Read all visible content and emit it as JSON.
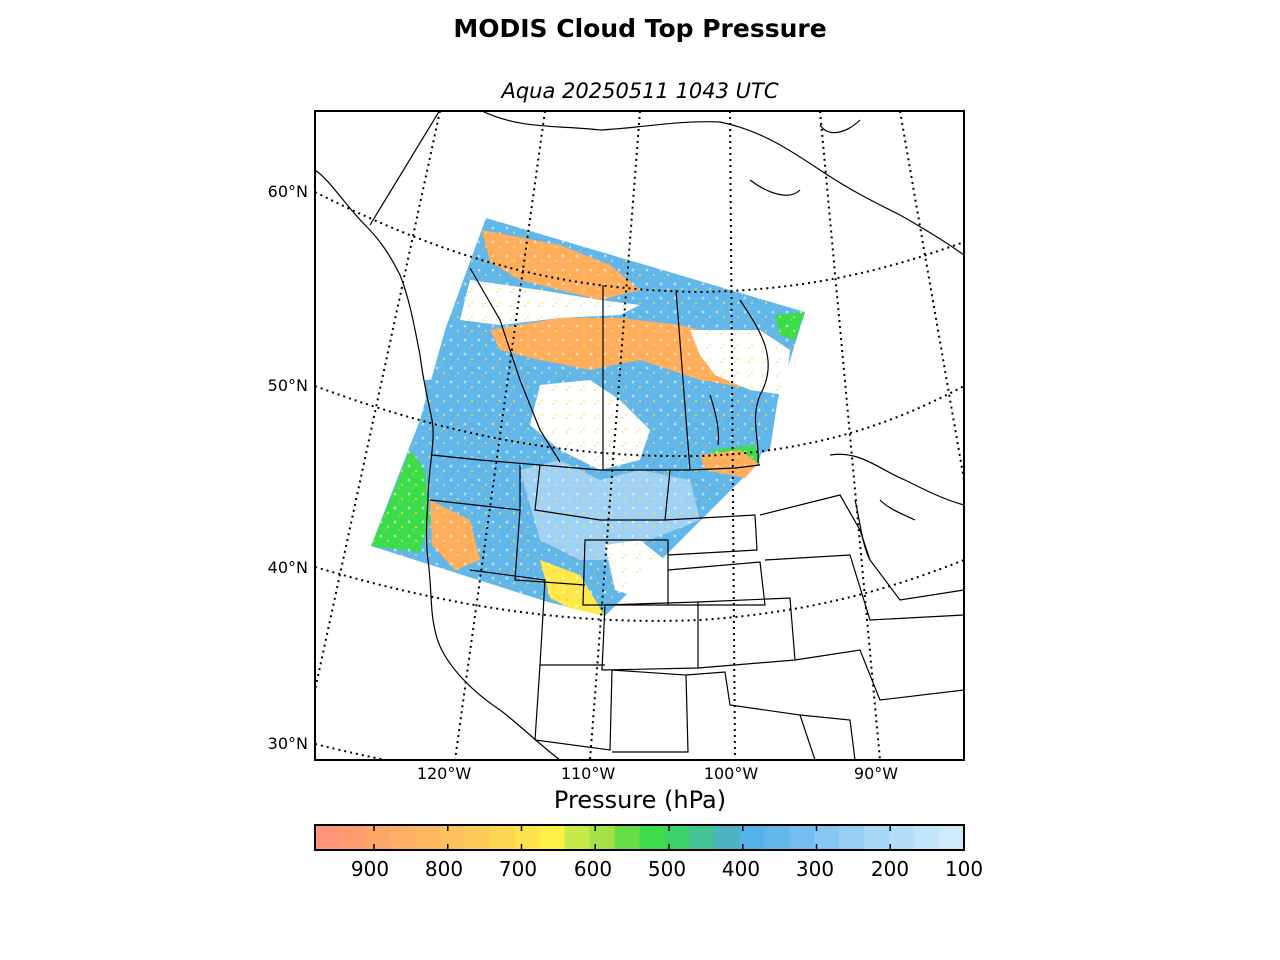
{
  "title": "MODIS Cloud Top Pressure",
  "subtitle": "Aqua 20250511 1043 UTC",
  "map": {
    "projection": "conic",
    "lat_labels": [
      "60°N",
      "50°N",
      "40°N",
      "30°N"
    ],
    "lon_labels": [
      "120°W",
      "110°W",
      "100°W",
      "90°W"
    ],
    "graticule_style": "dotted",
    "swath_colors": {
      "low": "#ffae5e",
      "mid_low": "#ffe94a",
      "mid": "#3ddc4a",
      "high": "#62b7ea",
      "very_high": "#9fd2f5",
      "clear": "#ffffff"
    }
  },
  "colorbar": {
    "label": "Pressure (hPa)",
    "tick_labels": [
      "900",
      "800",
      "700",
      "600",
      "500",
      "400",
      "300",
      "200",
      "100"
    ],
    "range": [
      980,
      100
    ],
    "colors": [
      "#ff9478",
      "#ff9d70",
      "#ffa66b",
      "#ffaf66",
      "#ffb862",
      "#ffc15d",
      "#ffcb58",
      "#ffd652",
      "#ffe34d",
      "#fff048",
      "#c8ea48",
      "#a3e348",
      "#66dd45",
      "#3edc4a",
      "#3ad36a",
      "#45c295",
      "#4cb3c3",
      "#53b2e6",
      "#62b7ea",
      "#74bdee",
      "#86c7f1",
      "#96cff3",
      "#a6d7f5",
      "#b4ddf7",
      "#c2e4f9",
      "#cde9fa"
    ]
  }
}
